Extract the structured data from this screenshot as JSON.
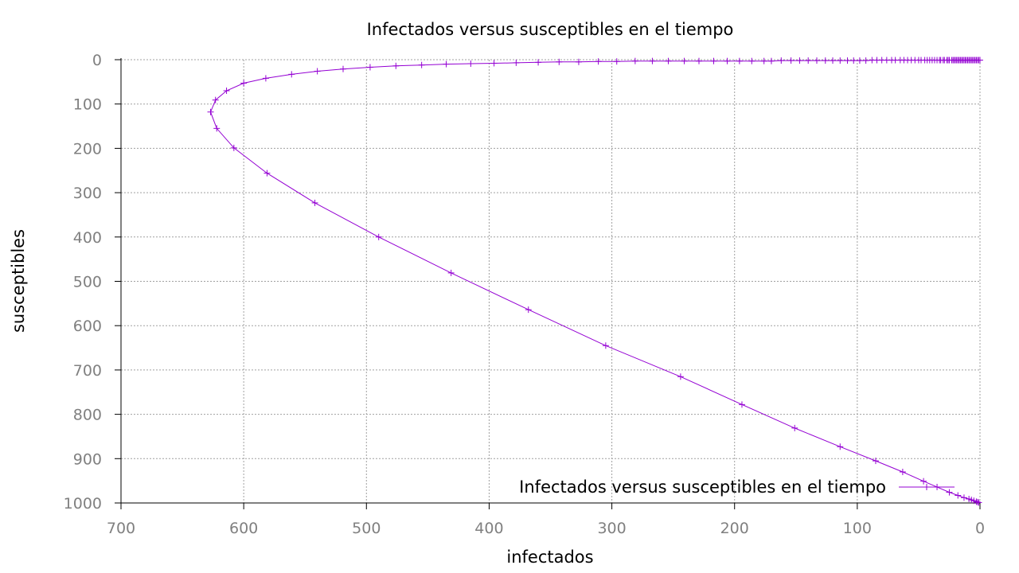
{
  "chart_data": {
    "type": "line",
    "title": "Infectados versus susceptibles en el tiempo",
    "xlabel": "infectados",
    "ylabel": "susceptibles",
    "x_axis_reversed": true,
    "y_axis_reversed": true,
    "xlim": [
      0,
      700
    ],
    "ylim": [
      0,
      1000
    ],
    "xticks": [
      "700",
      "600",
      "500",
      "400",
      "300",
      "200",
      "100",
      "0"
    ],
    "yticks": [
      "0",
      "100",
      "200",
      "300",
      "400",
      "500",
      "600",
      "700",
      "800",
      "900",
      "1000"
    ],
    "grid": true,
    "legend_position": "bottom-right",
    "series": [
      {
        "name": "Infectados versus susceptibles en el tiempo",
        "color": "#9400d3",
        "marker": "plus",
        "points": [
          [
            1,
            999
          ],
          [
            2,
            998
          ],
          [
            3,
            997
          ],
          [
            5,
            995
          ],
          [
            7,
            993
          ],
          [
            9,
            991
          ],
          [
            13,
            988
          ],
          [
            18,
            983
          ],
          [
            25,
            976
          ],
          [
            35,
            964
          ],
          [
            46,
            951
          ],
          [
            63,
            930
          ],
          [
            85,
            905
          ],
          [
            114,
            873
          ],
          [
            151,
            831
          ],
          [
            194,
            778
          ],
          [
            244,
            715
          ],
          [
            305,
            645
          ],
          [
            368,
            564
          ],
          [
            431,
            481
          ],
          [
            490,
            400
          ],
          [
            542,
            323
          ],
          [
            581,
            256
          ],
          [
            608,
            199
          ],
          [
            622,
            155
          ],
          [
            627,
            118
          ],
          [
            623,
            91
          ],
          [
            614,
            70
          ],
          [
            600,
            53
          ],
          [
            582,
            42
          ],
          [
            561,
            33
          ],
          [
            540,
            26
          ],
          [
            519,
            21
          ],
          [
            497,
            17
          ],
          [
            476,
            14
          ],
          [
            455,
            12
          ],
          [
            435,
            10
          ],
          [
            415,
            9
          ],
          [
            396,
            8
          ],
          [
            378,
            7
          ],
          [
            360,
            6
          ],
          [
            343,
            5
          ],
          [
            327,
            5
          ],
          [
            311,
            4
          ],
          [
            296,
            4
          ],
          [
            281,
            3
          ],
          [
            267,
            3
          ],
          [
            254,
            3
          ],
          [
            241,
            3
          ],
          [
            229,
            3
          ],
          [
            217,
            3
          ],
          [
            206,
            3
          ],
          [
            196,
            3
          ],
          [
            186,
            3
          ],
          [
            176,
            3
          ],
          [
            170,
            3
          ],
          [
            162,
            2
          ],
          [
            154,
            2
          ],
          [
            147,
            2
          ],
          [
            140,
            2
          ],
          [
            133,
            2
          ],
          [
            126,
            2
          ],
          [
            120,
            2
          ],
          [
            114,
            2
          ],
          [
            108,
            2
          ],
          [
            103,
            2
          ],
          [
            98,
            2
          ],
          [
            93,
            2
          ],
          [
            88,
            1
          ],
          [
            84,
            1
          ],
          [
            80,
            1
          ],
          [
            76,
            1
          ],
          [
            72,
            1
          ],
          [
            69,
            1
          ],
          [
            65,
            1
          ],
          [
            62,
            1
          ],
          [
            59,
            1
          ],
          [
            56,
            1
          ],
          [
            53,
            1
          ],
          [
            50,
            1
          ],
          [
            48,
            1
          ],
          [
            45,
            1
          ],
          [
            43,
            1
          ],
          [
            41,
            1
          ],
          [
            39,
            1
          ],
          [
            37,
            1
          ],
          [
            35,
            1
          ],
          [
            33,
            1
          ],
          [
            32,
            1
          ],
          [
            30,
            1
          ],
          [
            29,
            1
          ],
          [
            27,
            1
          ],
          [
            26,
            1
          ],
          [
            25,
            1
          ],
          [
            23,
            1
          ],
          [
            22,
            1
          ],
          [
            21,
            1
          ],
          [
            20,
            1
          ],
          [
            19,
            1
          ],
          [
            18,
            1
          ],
          [
            17,
            1
          ],
          [
            16,
            1
          ],
          [
            15,
            1
          ],
          [
            14,
            1
          ],
          [
            13,
            1
          ],
          [
            12,
            1
          ],
          [
            11,
            1
          ],
          [
            10,
            1
          ],
          [
            9,
            1
          ],
          [
            8,
            1
          ],
          [
            7,
            1
          ],
          [
            6,
            1
          ],
          [
            5,
            1
          ],
          [
            4,
            1
          ],
          [
            3,
            1
          ],
          [
            2,
            1
          ],
          [
            1,
            1
          ],
          [
            0,
            1
          ]
        ]
      }
    ]
  }
}
